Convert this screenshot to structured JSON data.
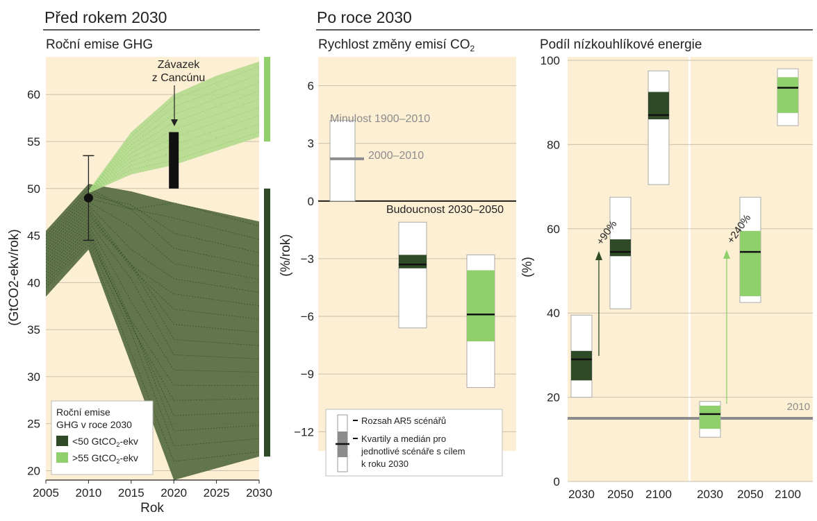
{
  "headings": {
    "before": "Před rokem 2030",
    "after": "Po roce 2030"
  },
  "colors": {
    "panel_bg": "#fdefd3",
    "dark_green": "#2e4a27",
    "dark_green_band": "#5a6e45",
    "light_green": "#8fcf6c",
    "light_green_band": "#b4d98e",
    "grey": "#8c8c8c"
  },
  "chart_data": [
    {
      "type": "area",
      "title": "Roční emise GHG",
      "xlabel": "Rok",
      "ylabel": "(GtCO2-ekv/rok)",
      "xlim": [
        2005,
        2030
      ],
      "ylim": [
        19,
        64
      ],
      "x_ticks": [
        "2005",
        "2010",
        "2015",
        "2020",
        "2025",
        "2030"
      ],
      "y_ticks": [
        "20",
        "25",
        "30",
        "35",
        "40",
        "45",
        "50",
        "55",
        "60"
      ],
      "grid": "horizontal",
      "series": [
        {
          "name": "<50 GtCO2-ekv",
          "color": "#5a6e45",
          "upper": [
            [
              2005,
              45.5
            ],
            [
              2010,
              50.5
            ],
            [
              2015,
              49.7
            ],
            [
              2020,
              48.5
            ],
            [
              2025,
              47.5
            ],
            [
              2030,
              46.5
            ]
          ],
          "lower": [
            [
              2005,
              38.5
            ],
            [
              2010,
              43.5
            ],
            [
              2020,
              19
            ],
            [
              2030,
              21.5
            ]
          ]
        },
        {
          "name": ">55 GtCO2-ekv",
          "color": "#b4d98e",
          "upper": [
            [
              2010,
              49.8
            ],
            [
              2015,
              56
            ],
            [
              2020,
              60
            ],
            [
              2025,
              62
            ],
            [
              2030,
              63.5
            ]
          ],
          "lower": [
            [
              2010,
              49.5
            ],
            [
              2015,
              51.5
            ],
            [
              2020,
              52.5
            ],
            [
              2025,
              54
            ],
            [
              2030,
              55.5
            ]
          ]
        }
      ],
      "point_2010": {
        "x": 2010,
        "y": 49,
        "err_low": 44.5,
        "err_high": 53.5
      },
      "cancun_pledge": {
        "x": 2020,
        "low": 50,
        "high": 56,
        "annotation": [
          "Závazek",
          "z Cancúnu"
        ]
      },
      "side_bars": [
        {
          "name": ">55 GtCO2-ekv",
          "low": 55,
          "high": 64,
          "color": "#8fcf6c"
        },
        {
          "name": "<50 GtCO2-ekv",
          "low": 21.5,
          "high": 50,
          "color": "#2e4a27"
        }
      ],
      "legend": {
        "title": [
          "Roční emise",
          "GHG v roce 2030"
        ],
        "entries": [
          {
            "label": "<50 GtCO",
            "sub": "2",
            "tail": "-ekv",
            "color": "#2e4a27"
          },
          {
            "label": ">55 GtCO",
            "sub": "2",
            "tail": "-ekv",
            "color": "#8fcf6c"
          }
        ],
        "placement": "bottom-left"
      }
    },
    {
      "type": "box",
      "title": "Rychlost změny emisí CO",
      "title_sub": "2",
      "ylabel": "(%/rok)",
      "ylim": [
        -13,
        7.5
      ],
      "y_ticks": [
        "6",
        "3",
        "0",
        "−3",
        "−6",
        "−9",
        "−12"
      ],
      "past": {
        "label": "Minulost 1900–2010",
        "low": 0,
        "high": 4.2,
        "recent_label": "2000–2010",
        "recent_value": 2.2
      },
      "future_label": "Budoucnost 2030–2050",
      "boxes": [
        {
          "group": "<50 GtCO2-ekv",
          "color": "#2e4a27",
          "range": [
            -6.6,
            -1.1
          ],
          "q1": -3.5,
          "q3": -2.8,
          "median": -3.3
        },
        {
          "group": ">55 GtCO2-ekv",
          "color": "#8fcf6c",
          "range": [
            -9.7,
            -2.8
          ],
          "q1": -7.3,
          "q3": -3.6,
          "median": -5.9
        }
      ],
      "legend": {
        "range_label": "Rozsah AR5 scénářů",
        "quartile_lines": [
          "Kvartily a medián pro",
          "jednotlivé scénáře s cílem",
          "k roku 2030"
        ]
      }
    },
    {
      "type": "box",
      "title": "Podíl nízkouhlíkové energie",
      "ylabel": "(%)",
      "ylim": [
        0,
        100
      ],
      "y_ticks": [
        "0",
        "20",
        "40",
        "60",
        "80",
        "100"
      ],
      "categories": [
        "2030",
        "2050",
        "2100",
        "2030",
        "2050",
        "2100"
      ],
      "reference": {
        "label": "2010",
        "value": 15
      },
      "boxes": [
        {
          "group": "<50 GtCO2-ekv",
          "year": "2030",
          "color": "#2e4a27",
          "range": [
            20,
            39.5
          ],
          "q1": 24,
          "q3": 31,
          "median": 29
        },
        {
          "group": "<50 GtCO2-ekv",
          "year": "2050",
          "color": "#2e4a27",
          "range": [
            41,
            67.5
          ],
          "q1": 53.5,
          "q3": 57.5,
          "median": 54.5
        },
        {
          "group": "<50 GtCO2-ekv",
          "year": "2100",
          "color": "#2e4a27",
          "range": [
            70.5,
            97.5
          ],
          "q1": 86,
          "q3": 92.5,
          "median": 87
        },
        {
          "group": ">55 GtCO2-ekv",
          "year": "2030",
          "color": "#8fcf6c",
          "range": [
            10.5,
            19
          ],
          "q1": 12.5,
          "q3": 18,
          "median": 16
        },
        {
          "group": ">55 GtCO2-ekv",
          "year": "2050",
          "color": "#8fcf6c",
          "range": [
            42.5,
            67.5
          ],
          "q1": 44,
          "q3": 59.5,
          "median": 54.5
        },
        {
          "group": ">55 GtCO2-ekv",
          "year": "2100",
          "color": "#8fcf6c",
          "range": [
            84.5,
            98
          ],
          "q1": 87.5,
          "q3": 96,
          "median": 93.5
        }
      ],
      "annotations": [
        "+90%",
        "+240%"
      ]
    }
  ]
}
